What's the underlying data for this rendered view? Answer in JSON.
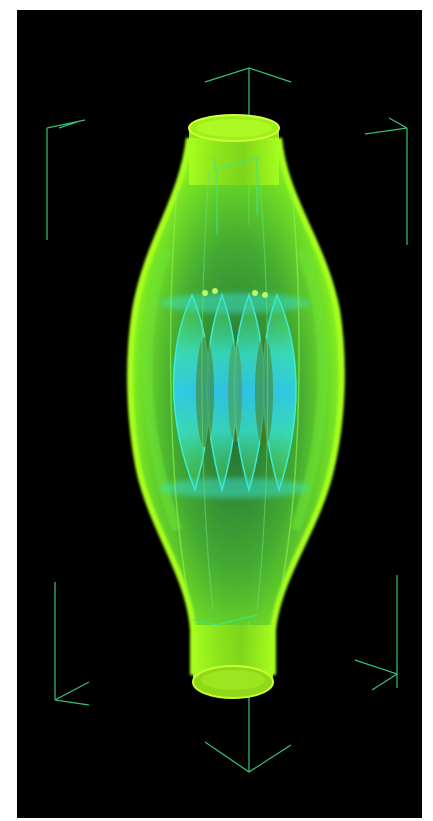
{
  "scene": {
    "description_free": true,
    "background_color": "#000000",
    "page_color": "#ffffff",
    "colors": {
      "body_outer": "#9cff1a",
      "body_mid": "#5fe82a",
      "body_inner": "#2fd06a",
      "ribbon": "#35e8d0",
      "ribbon_core": "#38d8ff",
      "rim": "#c8ff30",
      "bounding_box": "#3fe58a"
    },
    "controls": []
  }
}
